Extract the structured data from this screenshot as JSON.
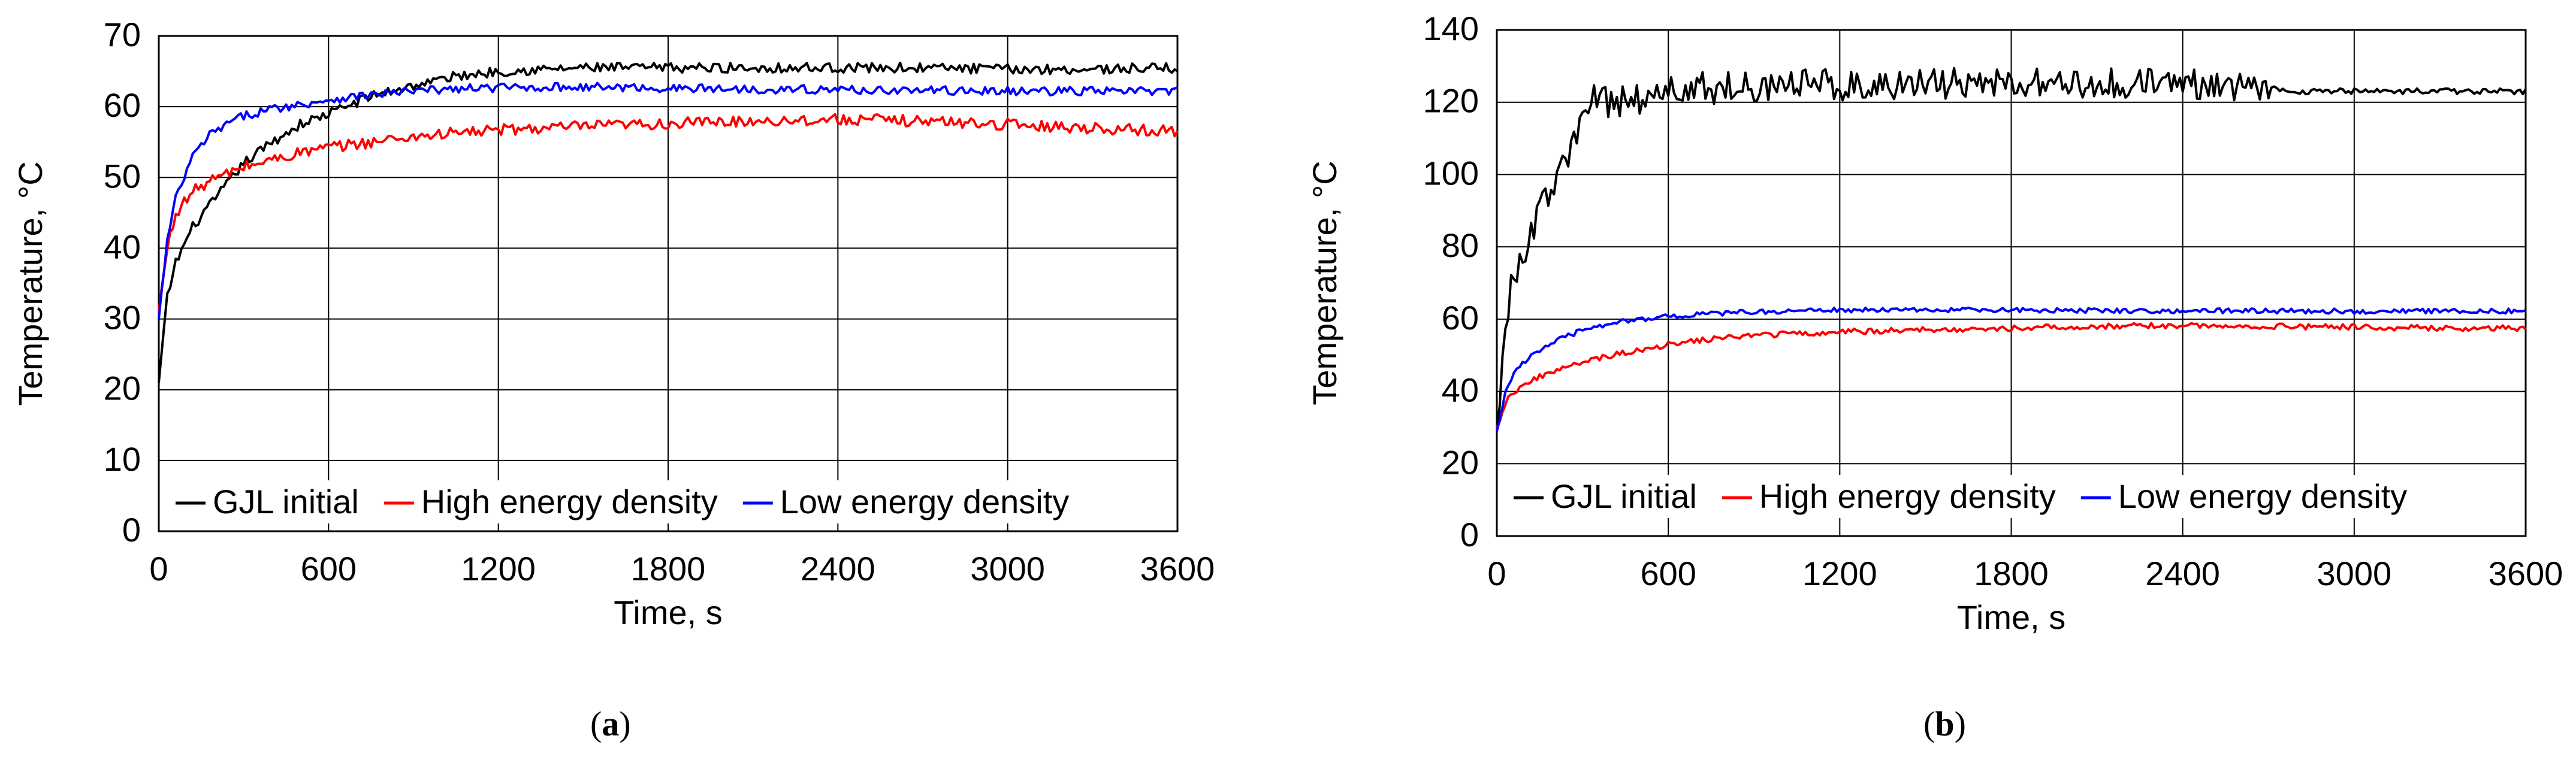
{
  "figure": {
    "panel_labels": [
      {
        "open": "(",
        "letter": "a",
        "close": ")"
      },
      {
        "open": "(",
        "letter": "b",
        "close": ")"
      }
    ]
  },
  "chart_data": [
    {
      "type": "line",
      "panel": "a",
      "xlabel": "Time, s",
      "ylabel": "Temperature, °C",
      "xlim": [
        0,
        3600
      ],
      "ylim": [
        0,
        70
      ],
      "x_ticks": [
        0,
        600,
        1200,
        1800,
        2400,
        3000,
        3600
      ],
      "y_ticks": [
        0,
        10,
        20,
        30,
        40,
        50,
        60,
        70
      ],
      "grid": true,
      "legend_position": "bottom",
      "series": [
        {
          "name": "GJL initial",
          "color": "#000000",
          "noise": 0.7,
          "x": [
            0,
            30,
            60,
            120,
            180,
            240,
            300,
            400,
            500,
            600,
            750,
            900,
            1050,
            1200,
            1500,
            1800,
            2100,
            2400,
            2700,
            3000,
            3300,
            3600
          ],
          "y": [
            21,
            33,
            38,
            43,
            46,
            49,
            52,
            55,
            57.5,
            59,
            61.5,
            63,
            64.3,
            65,
            65.5,
            65.5,
            65.5,
            65.5,
            65.5,
            65.3,
            65.3,
            65.5
          ]
        },
        {
          "name": "High energy density",
          "color": "#ff0000",
          "noise": 0.8,
          "x": [
            0,
            30,
            60,
            120,
            180,
            240,
            300,
            400,
            500,
            600,
            750,
            900,
            1050,
            1200,
            1500,
            1800,
            2100,
            2400,
            2700,
            3000,
            3300,
            3600
          ],
          "y": [
            31,
            40,
            45,
            48,
            49.5,
            50.5,
            51.5,
            52.5,
            53.5,
            54.2,
            55,
            55.8,
            56.3,
            56.7,
            57.2,
            57.6,
            58,
            58.2,
            58,
            57.5,
            57,
            56.5
          ]
        },
        {
          "name": "Low energy density",
          "color": "#0000ff",
          "noise": 0.6,
          "x": [
            0,
            30,
            60,
            120,
            180,
            240,
            300,
            400,
            500,
            600,
            750,
            900,
            1050,
            1200,
            1500,
            1800,
            2100,
            2400,
            2700,
            3000,
            3300,
            3600
          ],
          "y": [
            30,
            41,
            47,
            53,
            56,
            57.5,
            58.7,
            59.7,
            60.3,
            61,
            61.7,
            62.2,
            62.5,
            62.7,
            62.8,
            62.6,
            62.5,
            62.4,
            62.3,
            62.2,
            62.2,
            62.2
          ]
        }
      ]
    },
    {
      "type": "line",
      "panel": "b",
      "xlabel": "Time, s",
      "ylabel": "Temperature, °C",
      "xlim": [
        0,
        3600
      ],
      "ylim": [
        0,
        140
      ],
      "x_ticks": [
        0,
        600,
        1200,
        1800,
        2400,
        3000,
        3600
      ],
      "y_ticks": [
        0,
        20,
        40,
        60,
        80,
        100,
        120,
        140
      ],
      "grid": true,
      "legend_position": "bottom",
      "series": [
        {
          "name": "GJL initial",
          "color": "#000000",
          "noise": 4.5,
          "noise_until": 2700,
          "noise_after": 0.8,
          "x": [
            0,
            20,
            50,
            100,
            150,
            200,
            250,
            300,
            330,
            360,
            400,
            500,
            600,
            700,
            800,
            1000,
            1200,
            1500,
            1800,
            2100,
            2400,
            2700,
            2750,
            3000,
            3300,
            3600
          ],
          "y": [
            30,
            50,
            68,
            80,
            90,
            97,
            105,
            116,
            120,
            121,
            120,
            121,
            123,
            124,
            124,
            125,
            125,
            125,
            125,
            125,
            125,
            125,
            123,
            123,
            123,
            123
          ]
        },
        {
          "name": "High energy density",
          "color": "#ff0000",
          "noise": 0.8,
          "x": [
            0,
            30,
            60,
            120,
            180,
            240,
            300,
            400,
            500,
            600,
            750,
            900,
            1050,
            1200,
            1500,
            1800,
            2100,
            2400,
            2700,
            3000,
            3300,
            3600
          ],
          "y": [
            30,
            37,
            40,
            43,
            45,
            46.5,
            48,
            50,
            51.5,
            53,
            54.5,
            55.5,
            56,
            56.5,
            57,
            57.5,
            58,
            58.2,
            58,
            57.8,
            57.5,
            57.5
          ]
        },
        {
          "name": "Low energy density",
          "color": "#0000ff",
          "noise": 0.7,
          "x": [
            0,
            30,
            60,
            120,
            180,
            240,
            300,
            400,
            500,
            600,
            750,
            900,
            1050,
            1200,
            1500,
            1800,
            2100,
            2400,
            2700,
            3000,
            3300,
            3600
          ],
          "y": [
            29,
            40,
            45,
            50,
            53,
            55,
            57,
            59,
            60,
            60.7,
            61.5,
            62,
            62.3,
            62.5,
            62.5,
            62.5,
            62.4,
            62.3,
            62.3,
            62.2,
            62.2,
            62.2
          ]
        }
      ]
    }
  ]
}
